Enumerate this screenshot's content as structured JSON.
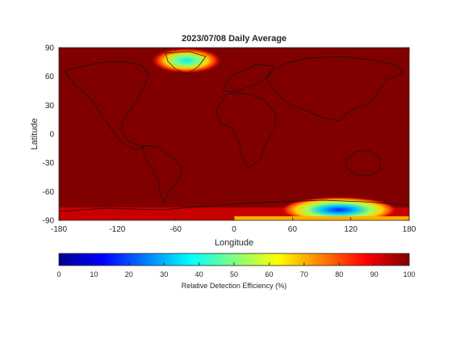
{
  "chart_data": {
    "type": "heatmap",
    "title": "2023/07/08 Daily Average",
    "xlabel": "Longitude",
    "ylabel": "Latitude",
    "xlim": [
      -180,
      180
    ],
    "ylim": [
      -90,
      90
    ],
    "xticks": [
      "-180",
      "-120",
      "-60",
      "0",
      "60",
      "120",
      "180"
    ],
    "yticks": [
      "90",
      "60",
      "30",
      "0",
      "-30",
      "-60",
      "-90"
    ],
    "background_value": 100,
    "low_regions": [
      {
        "name": "Greenland",
        "lon": -42,
        "lat": 75,
        "lon_radius": 32,
        "lat_radius": 10,
        "min_value": 28
      },
      {
        "name": "Antarctica",
        "lon": 110,
        "lat": -79,
        "lon_radius": 42,
        "lat_radius": 9,
        "min_value": 18
      }
    ],
    "colorbar": {
      "label": "Relative Detection Efficiency (%)",
      "range": [
        0,
        100
      ],
      "ticks": [
        "0",
        "10",
        "20",
        "30",
        "40",
        "50",
        "60",
        "70",
        "80",
        "90",
        "100"
      ],
      "colormap": "jet"
    },
    "colors": {
      "dark_red": "#800000",
      "red": "#ff0000",
      "yellow": "#ffff00",
      "cyan": "#00ffff",
      "blue": "#0000ff",
      "dark_blue": "#00008f",
      "coastline": "#111111"
    }
  }
}
